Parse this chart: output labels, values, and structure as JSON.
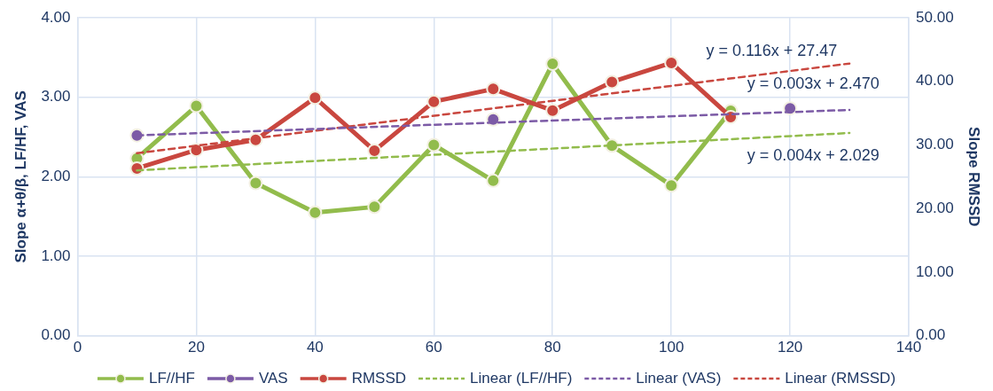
{
  "chart_data": {
    "type": "line",
    "ylabel": "Slope α+θ/β, LF/HF, VAS",
    "y2label": "Slope RMSSD",
    "xlim": [
      0,
      140
    ],
    "xticks": [
      0,
      20,
      40,
      60,
      80,
      100,
      120,
      140
    ],
    "ylim": [
      0,
      4
    ],
    "yticks": [
      {
        "value": 0,
        "label": "0.00"
      },
      {
        "value": 1,
        "label": "1.00"
      },
      {
        "value": 2,
        "label": "2.00"
      },
      {
        "value": 3,
        "label": "3.00"
      },
      {
        "value": 4,
        "label": "4.00"
      }
    ],
    "y2lim": [
      0,
      50
    ],
    "y2ticks": [
      {
        "value": 0,
        "label": "0.00"
      },
      {
        "value": 10,
        "label": "10.00"
      },
      {
        "value": 20,
        "label": "20.00"
      },
      {
        "value": 30,
        "label": "30.00"
      },
      {
        "value": 40,
        "label": "40.00"
      },
      {
        "value": 50,
        "label": "50.00"
      }
    ],
    "grid": true,
    "legend": "bottom",
    "marker": "circle",
    "line_style": "solid",
    "series": [
      {
        "name": "LF//HF",
        "color": "#92bc4c",
        "x": [
          10,
          20,
          30,
          40,
          50,
          60,
          70,
          80,
          90,
          100,
          110
        ],
        "values": [
          2.23,
          2.89,
          1.92,
          1.55,
          1.62,
          2.4,
          1.95,
          3.42,
          2.39,
          1.89,
          2.83
        ]
      },
      {
        "name": "VAS",
        "type": "scatter",
        "color": "#7c5ba6",
        "x": [
          10,
          70,
          120
        ],
        "values": [
          2.52,
          2.72,
          2.86
        ]
      },
      {
        "name": "RMSSD",
        "color": "#c9473f",
        "axis": "y2",
        "x": [
          10,
          20,
          30,
          40,
          50,
          60,
          70,
          80,
          90,
          100,
          110
        ],
        "values": [
          26.3,
          29.2,
          30.8,
          37.4,
          29.1,
          36.8,
          38.8,
          35.4,
          39.9,
          42.9,
          34.4
        ]
      },
      {
        "name": "Linear (LF//HF)",
        "color": "#92bc4c",
        "line_style": "dashed",
        "marker": "none",
        "x": [
          10,
          130
        ],
        "values": [
          2.08,
          2.55
        ]
      },
      {
        "name": "Linear (VAS)",
        "color": "#7c5ba6",
        "line_style": "dashed",
        "marker": "none",
        "x": [
          10,
          130
        ],
        "values": [
          2.52,
          2.84
        ]
      },
      {
        "name": "Linear (RMSSD)",
        "color": "#c9473f",
        "line_style": "dashed",
        "marker": "none",
        "axis": "y2",
        "x": [
          10,
          130
        ],
        "values": [
          28.7,
          42.8
        ]
      }
    ],
    "annotations": [
      "y = 0.116x + 27.47",
      "y = 0.003x + 2.470",
      "y = 0.004x + 2.029"
    ]
  }
}
